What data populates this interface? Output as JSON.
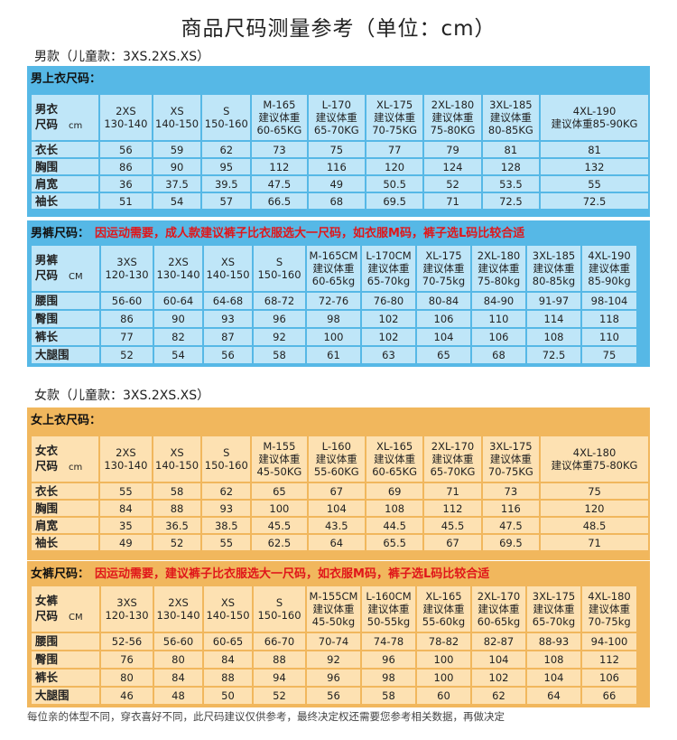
{
  "title": "商品尺码测量参考（单位：cm）",
  "men_label": "男款（儿童款：3XS.2XS.XS）",
  "women_label": "女款（儿童款：3XS.2XS.XS）",
  "men_top": {
    "title": "男上衣尺码：",
    "header_label": [
      "男衣",
      "尺码"
    ],
    "header_unit": "cm",
    "columns": [
      [
        "2XS",
        "130-140"
      ],
      [
        "XS",
        "140-150"
      ],
      [
        "S",
        "150-160"
      ],
      [
        "M-165",
        "建议体重",
        "60-65KG"
      ],
      [
        "L-170",
        "建议体重",
        "65-70KG"
      ],
      [
        "XL-175",
        "建议体重",
        "70-75KG"
      ],
      [
        "2XL-180",
        "建议体重",
        "75-80KG"
      ],
      [
        "3XL-185",
        "建议体重",
        "80-85KG"
      ],
      [
        "4XL-190",
        "建议体重85-90KG"
      ]
    ],
    "rows": [
      {
        "label": "衣长",
        "values": [
          "56",
          "59",
          "62",
          "73",
          "75",
          "77",
          "79",
          "81",
          "81"
        ]
      },
      {
        "label": "胸围",
        "values": [
          "86",
          "90",
          "95",
          "112",
          "116",
          "120",
          "124",
          "128",
          "132"
        ]
      },
      {
        "label": "肩宽",
        "values": [
          "36",
          "37.5",
          "39.5",
          "47.5",
          "49",
          "50.5",
          "52",
          "53.5",
          "55"
        ]
      },
      {
        "label": "袖长",
        "values": [
          "51",
          "54",
          "57",
          "66.5",
          "68",
          "69.5",
          "71",
          "72.5",
          "72.5"
        ]
      }
    ]
  },
  "men_pants": {
    "title": "男裤尺码：",
    "note": "因运动需要，成人款建议裤子比衣服选大一尺码，如衣服M码，裤子选L码比较合适",
    "header_label": [
      "男裤",
      "尺码"
    ],
    "header_unit": "CM",
    "columns": [
      [
        "3XS",
        "120-130"
      ],
      [
        "2XS",
        "130-140"
      ],
      [
        "XS",
        "140-150"
      ],
      [
        "S",
        "150-160"
      ],
      [
        "M-165CM",
        "建议体重",
        "60-65kg"
      ],
      [
        "L-170CM",
        "建议体重",
        "65-70kg"
      ],
      [
        "XL-175",
        "建议体重",
        "70-75kg"
      ],
      [
        "2XL-180",
        "建议体重",
        "75-80kg"
      ],
      [
        "3XL-185",
        "建议体重",
        "80-85kg"
      ],
      [
        "4XL-190",
        "建议体重",
        "85-90kg"
      ]
    ],
    "rows": [
      {
        "label": "腰围",
        "values": [
          "56-60",
          "60-64",
          "64-68",
          "68-72",
          "72-76",
          "76-80",
          "80-84",
          "84-90",
          "91-97",
          "98-104"
        ]
      },
      {
        "label": "臀围",
        "values": [
          "86",
          "90",
          "93",
          "96",
          "98",
          "102",
          "106",
          "110",
          "114",
          "118"
        ]
      },
      {
        "label": "裤长",
        "values": [
          "77",
          "82",
          "87",
          "92",
          "100",
          "102",
          "104",
          "106",
          "108",
          "110"
        ]
      },
      {
        "label": "大腿围",
        "values": [
          "52",
          "54",
          "56",
          "58",
          "61",
          "63",
          "65",
          "68",
          "72.5",
          "75"
        ]
      }
    ]
  },
  "women_top": {
    "title": "女上衣尺码：",
    "header_label": [
      "女衣",
      "尺码"
    ],
    "header_unit": "cm",
    "columns": [
      [
        "2XS",
        "130-140"
      ],
      [
        "XS",
        "140-150"
      ],
      [
        "S",
        "150-160"
      ],
      [
        "M-155",
        "建议体重",
        "45-50KG"
      ],
      [
        "L-160",
        "建议体重",
        "55-60KG"
      ],
      [
        "XL-165",
        "建议体重",
        "60-65KG"
      ],
      [
        "2XL-170",
        "建议体重",
        "65-70KG"
      ],
      [
        "3XL-175",
        "建议体重",
        "70-75KG"
      ],
      [
        "4XL-180",
        "建议体重75-80KG"
      ]
    ],
    "rows": [
      {
        "label": "衣长",
        "values": [
          "55",
          "58",
          "62",
          "65",
          "67",
          "69",
          "71",
          "73",
          "75"
        ]
      },
      {
        "label": "胸围",
        "values": [
          "84",
          "88",
          "93",
          "100",
          "104",
          "108",
          "112",
          "116",
          "120"
        ]
      },
      {
        "label": "肩宽",
        "values": [
          "35",
          "36.5",
          "38.5",
          "45.5",
          "43.5",
          "44.5",
          "45.5",
          "47.5",
          "48.5"
        ]
      },
      {
        "label": "袖长",
        "values": [
          "49",
          "52",
          "55",
          "62.5",
          "64",
          "65.5",
          "67",
          "69.5",
          "71"
        ]
      }
    ]
  },
  "women_pants": {
    "title": "女裤尺码：",
    "note": "因运动需要，建议裤子比衣服选大一尺码，如衣服M码，裤子选L码比较合适",
    "header_label": [
      "女裤",
      "尺码"
    ],
    "header_unit": "CM",
    "columns": [
      [
        "3XS",
        "120-130"
      ],
      [
        "2XS",
        "130-140"
      ],
      [
        "XS",
        "140-150"
      ],
      [
        "S",
        "150-160"
      ],
      [
        "M-155CM",
        "建议体重",
        "45-50kg"
      ],
      [
        "L-160CM",
        "建议体重",
        "50-55kg"
      ],
      [
        "XL-165",
        "建议体重",
        "55-60kg"
      ],
      [
        "2XL-170",
        "建议体重",
        "60-65kg"
      ],
      [
        "3XL-175",
        "建议体重",
        "65-70kg"
      ],
      [
        "4XL-180",
        "建议体重",
        "70-75kg"
      ]
    ],
    "rows": [
      {
        "label": "腰围",
        "values": [
          "52-56",
          "56-60",
          "60-65",
          "66-70",
          "70-74",
          "74-78",
          "78-82",
          "82-87",
          "88-93",
          "94-100"
        ]
      },
      {
        "label": "臀围",
        "values": [
          "76",
          "80",
          "84",
          "88",
          "92",
          "96",
          "100",
          "104",
          "108",
          "112"
        ]
      },
      {
        "label": "裤长",
        "values": [
          "80",
          "84",
          "88",
          "94",
          "96",
          "98",
          "100",
          "102",
          "104",
          "106"
        ]
      },
      {
        "label": "大腿围",
        "values": [
          "46",
          "48",
          "50",
          "52",
          "56",
          "58",
          "60",
          "62",
          "64",
          "66"
        ]
      }
    ]
  },
  "footer": "每位亲的体型不同，穿衣喜好不同，此尺码建议仅供参考，最终决定权还需要您参考相关数据，再做决定"
}
